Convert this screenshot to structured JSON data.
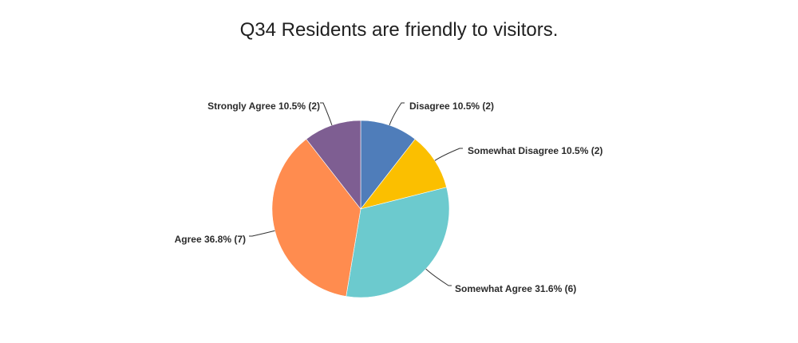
{
  "title": "Q34 Residents are friendly to visitors.",
  "chart_data": {
    "type": "pie",
    "title": "Q34 Residents are friendly to visitors.",
    "start_angle_deg": 0,
    "direction": "clockwise",
    "slices": [
      {
        "label": "Disagree 10.5% (2)",
        "category": "Disagree",
        "percent": 10.5,
        "count": 2,
        "color": "#4F7DBA"
      },
      {
        "label": "Somewhat Disagree 10.5% (2)",
        "category": "Somewhat Disagree",
        "percent": 10.5,
        "count": 2,
        "color": "#FBBF00"
      },
      {
        "label": "Somewhat Agree 31.6% (6)",
        "category": "Somewhat Agree",
        "percent": 31.6,
        "count": 6,
        "color": "#6CCACE"
      },
      {
        "label": "Agree 36.8% (7)",
        "category": "Agree",
        "percent": 36.8,
        "count": 7,
        "color": "#FF8C4F"
      },
      {
        "label": "Strongly Agree 10.5% (2)",
        "category": "Strongly Agree",
        "percent": 10.5,
        "count": 2,
        "color": "#7E5E92"
      }
    ]
  }
}
